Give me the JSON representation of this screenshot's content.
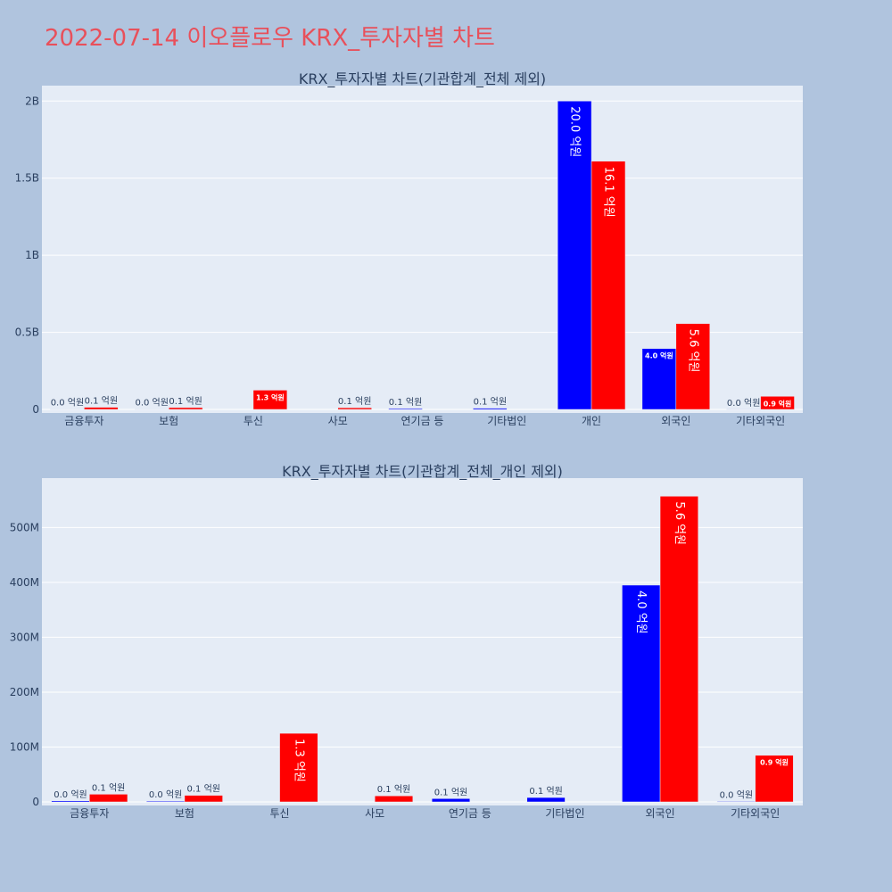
{
  "page_title": "2022-07-14 이오플로우 KRX_투자자별 차트",
  "colors": {
    "buy": "#0000ff",
    "sell": "#ff0000",
    "background": "#b0c4de",
    "plot_background": "#e5ecf6",
    "title": "#e8505b"
  },
  "chart_data": [
    {
      "type": "bar",
      "title": "KRX_투자자별 차트(기관합계_전체 제외)",
      "categories": [
        "금융투자",
        "보험",
        "투신",
        "사모",
        "연기금 등",
        "기타법인",
        "개인",
        "외국인",
        "기타외국인"
      ],
      "series": [
        {
          "color": "#0000ff",
          "values": [
            2000000,
            1500000,
            0,
            0,
            6000000,
            8000000,
            2000000000,
            395000000,
            1000000
          ],
          "labels": [
            "0.0 억원",
            "0.0 억원",
            "",
            "",
            "0.1 억원",
            "0.1 억원",
            "20.0 억원",
            "4.0 억원",
            "0.0 억원"
          ]
        },
        {
          "color": "#ff0000",
          "values": [
            14000000,
            12000000,
            125000000,
            11000000,
            0,
            0,
            1610000000,
            557000000,
            85000000
          ],
          "labels": [
            "0.1 억원",
            "0.1 억원",
            "1.3 억원",
            "0.1 억원",
            "",
            "",
            "16.1 억원",
            "5.6 억원",
            "0.9 억원"
          ]
        }
      ],
      "ylim": [
        0,
        2100000000
      ],
      "yticks": [
        {
          "value": 0,
          "label": "0"
        },
        {
          "value": 500000000,
          "label": "0.5B"
        },
        {
          "value": 1000000000,
          "label": "1B"
        },
        {
          "value": 1500000000,
          "label": "1.5B"
        },
        {
          "value": 2000000000,
          "label": "2B"
        }
      ],
      "grid": true
    },
    {
      "type": "bar",
      "title": "KRX_투자자별 차트(기관합계_전체_개인 제외)",
      "categories": [
        "금융투자",
        "보험",
        "투신",
        "사모",
        "연기금 등",
        "기타법인",
        "외국인",
        "기타외국인"
      ],
      "series": [
        {
          "color": "#0000ff",
          "values": [
            2000000,
            1500000,
            0,
            0,
            6000000,
            8000000,
            395000000,
            1000000
          ],
          "labels": [
            "0.0 억원",
            "0.0 억원",
            "",
            "",
            "0.1 억원",
            "0.1 억원",
            "4.0 억원",
            "0.0 억원"
          ]
        },
        {
          "color": "#ff0000",
          "values": [
            14000000,
            12000000,
            125000000,
            11000000,
            0,
            0,
            557000000,
            85000000
          ],
          "labels": [
            "0.1 억원",
            "0.1 억원",
            "1.3 억원",
            "0.1 억원",
            "",
            "",
            "5.6 억원",
            "0.9 억원"
          ]
        }
      ],
      "ylim": [
        0,
        590000000
      ],
      "yticks": [
        {
          "value": 0,
          "label": "0"
        },
        {
          "value": 100000000,
          "label": "100M"
        },
        {
          "value": 200000000,
          "label": "200M"
        },
        {
          "value": 300000000,
          "label": "300M"
        },
        {
          "value": 400000000,
          "label": "400M"
        },
        {
          "value": 500000000,
          "label": "500M"
        }
      ],
      "grid": true
    }
  ]
}
